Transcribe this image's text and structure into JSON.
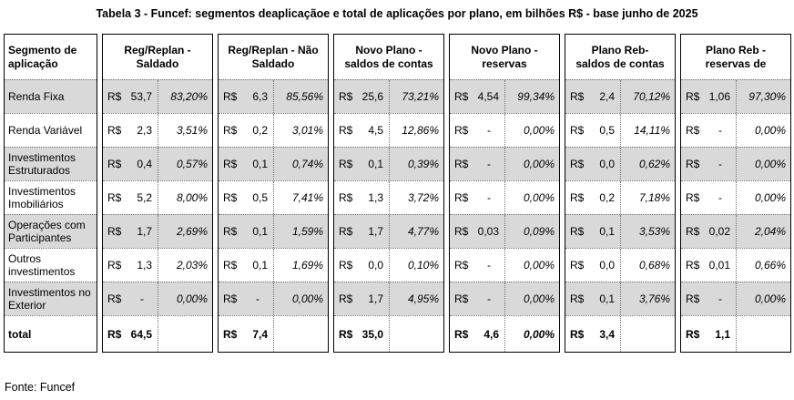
{
  "title": "Tabela 3 - Funcef: segmentos deaplicaçãoe e total de aplicações por plano, em bilhões R$ - base junho de 2025",
  "source_note": "Fonte: Funcef",
  "colors": {
    "row_shade": "#d9d9d9",
    "panel_border": "#000000",
    "dotted_divider": "#737373",
    "text": "#000000",
    "background": "#ffffff"
  },
  "table": {
    "currency_symbol": "R$",
    "segment_column_header": [
      "Segmento de",
      "aplicação"
    ],
    "groups": [
      {
        "header": [
          "Reg/Replan -",
          "Saldado"
        ]
      },
      {
        "header": [
          "Reg/Replan - Não",
          "Saldado"
        ]
      },
      {
        "header": [
          "Novo Plano -",
          "saldos de contas"
        ]
      },
      {
        "header": [
          "Novo Plano -",
          "reservas"
        ]
      },
      {
        "header": [
          "Plano Reb-",
          "saldos de contas"
        ]
      },
      {
        "header": [
          "Plano Reb -",
          "reservas de"
        ]
      }
    ],
    "rows": [
      {
        "segment": "Renda Fixa",
        "shaded": true,
        "cells": [
          {
            "v": "53,7",
            "p": "83,20%"
          },
          {
            "v": "6,3",
            "p": "85,56%"
          },
          {
            "v": "25,6",
            "p": "73,21%"
          },
          {
            "v": "4,54",
            "p": "99,34%"
          },
          {
            "v": "2,4",
            "p": "70,12%"
          },
          {
            "v": "1,06",
            "p": "97,30%"
          }
        ]
      },
      {
        "segment": "Renda Variável",
        "shaded": false,
        "cells": [
          {
            "v": "2,3",
            "p": "3,51%"
          },
          {
            "v": "0,2",
            "p": "3,01%"
          },
          {
            "v": "4,5",
            "p": "12,86%"
          },
          {
            "v": "-",
            "p": "0,00%"
          },
          {
            "v": "0,5",
            "p": "14,11%"
          },
          {
            "v": "-",
            "p": "0,00%"
          }
        ]
      },
      {
        "segment": "Investimentos Estruturados",
        "shaded": true,
        "cells": [
          {
            "v": "0,4",
            "p": "0,57%"
          },
          {
            "v": "0,1",
            "p": "0,74%"
          },
          {
            "v": "0,1",
            "p": "0,39%"
          },
          {
            "v": "-",
            "p": "0,00%"
          },
          {
            "v": "0,0",
            "p": "0,62%"
          },
          {
            "v": "-",
            "p": "0,00%"
          }
        ]
      },
      {
        "segment": "Investimentos Imobiliários",
        "shaded": false,
        "cells": [
          {
            "v": "5,2",
            "p": "8,00%"
          },
          {
            "v": "0,5",
            "p": "7,41%"
          },
          {
            "v": "1,3",
            "p": "3,72%"
          },
          {
            "v": "-",
            "p": "0,00%"
          },
          {
            "v": "0,2",
            "p": "7,18%"
          },
          {
            "v": "-",
            "p": "0,00%"
          }
        ]
      },
      {
        "segment": "Operações com Participantes",
        "shaded": true,
        "cells": [
          {
            "v": "1,7",
            "p": "2,69%"
          },
          {
            "v": "0,1",
            "p": "1,59%"
          },
          {
            "v": "1,7",
            "p": "4,77%"
          },
          {
            "v": "0,03",
            "p": "0,09%"
          },
          {
            "v": "0,1",
            "p": "3,53%"
          },
          {
            "v": "0,02",
            "p": "2,04%"
          }
        ]
      },
      {
        "segment": "Outros investimentos",
        "shaded": false,
        "cells": [
          {
            "v": "1,3",
            "p": "2,03%"
          },
          {
            "v": "0,1",
            "p": "1,69%"
          },
          {
            "v": "0,0",
            "p": "0,10%"
          },
          {
            "v": "-",
            "p": "0,00%"
          },
          {
            "v": "0,0",
            "p": "0,68%"
          },
          {
            "v": "0,01",
            "p": "0,66%"
          }
        ]
      },
      {
        "segment": "Investimentos no Exterior",
        "shaded": true,
        "cells": [
          {
            "v": "-",
            "p": "0,00%"
          },
          {
            "v": "-",
            "p": "0,00%"
          },
          {
            "v": "1,7",
            "p": "4,95%"
          },
          {
            "v": "-",
            "p": "0,00%"
          },
          {
            "v": "0,1",
            "p": "3,76%"
          },
          {
            "v": "-",
            "p": "0,00%"
          }
        ]
      }
    ],
    "total_row": {
      "segment": "total",
      "cells": [
        {
          "v": "64,5",
          "p": ""
        },
        {
          "v": "7,4",
          "p": ""
        },
        {
          "v": "35,0",
          "p": ""
        },
        {
          "v": "4,6",
          "p": "0,00%"
        },
        {
          "v": "3,4",
          "p": ""
        },
        {
          "v": "1,1",
          "p": ""
        }
      ]
    }
  },
  "chart_data": {
    "type": "table",
    "title": "Tabela 3 - Funcef: segmentos deaplicaçãoe e total de aplicações por plano, em bilhões R$ - base junho de 2025",
    "source": "Fonte: Funcef",
    "unit": "bilhões R$",
    "columns": [
      "Segmento de aplicação",
      "Reg/Replan - Saldado (R$)",
      "Reg/Replan - Saldado (%)",
      "Reg/Replan - Não Saldado (R$)",
      "Reg/Replan - Não Saldado (%)",
      "Novo Plano - saldos de contas (R$)",
      "Novo Plano - saldos de contas (%)",
      "Novo Plano - reservas (R$)",
      "Novo Plano - reservas (%)",
      "Plano Reb - saldos de contas (R$)",
      "Plano Reb - saldos de contas (%)",
      "Plano Reb - reservas de (R$)",
      "Plano Reb - reservas de (%)"
    ],
    "rows": [
      [
        "Renda Fixa",
        "53,7",
        "83,20%",
        "6,3",
        "85,56%",
        "25,6",
        "73,21%",
        "4,54",
        "99,34%",
        "2,4",
        "70,12%",
        "1,06",
        "97,30%"
      ],
      [
        "Renda Variável",
        "2,3",
        "3,51%",
        "0,2",
        "3,01%",
        "4,5",
        "12,86%",
        "-",
        "0,00%",
        "0,5",
        "14,11%",
        "-",
        "0,00%"
      ],
      [
        "Investimentos Estruturados",
        "0,4",
        "0,57%",
        "0,1",
        "0,74%",
        "0,1",
        "0,39%",
        "-",
        "0,00%",
        "0,0",
        "0,62%",
        "-",
        "0,00%"
      ],
      [
        "Investimentos Imobiliários",
        "5,2",
        "8,00%",
        "0,5",
        "7,41%",
        "1,3",
        "3,72%",
        "-",
        "0,00%",
        "0,2",
        "7,18%",
        "-",
        "0,00%"
      ],
      [
        "Operações com Participantes",
        "1,7",
        "2,69%",
        "0,1",
        "1,59%",
        "1,7",
        "4,77%",
        "0,03",
        "0,09%",
        "0,1",
        "3,53%",
        "0,02",
        "2,04%"
      ],
      [
        "Outros investimentos",
        "1,3",
        "2,03%",
        "0,1",
        "1,69%",
        "0,0",
        "0,10%",
        "-",
        "0,00%",
        "0,0",
        "0,68%",
        "0,01",
        "0,66%"
      ],
      [
        "Investimentos no Exterior",
        "-",
        "0,00%",
        "-",
        "0,00%",
        "1,7",
        "4,95%",
        "-",
        "0,00%",
        "0,1",
        "3,76%",
        "-",
        "0,00%"
      ]
    ],
    "total": [
      "total",
      "64,5",
      "",
      "7,4",
      "",
      "35,0",
      "",
      "4,6",
      "0,00%",
      "3,4",
      "",
      "1,1",
      ""
    ]
  }
}
